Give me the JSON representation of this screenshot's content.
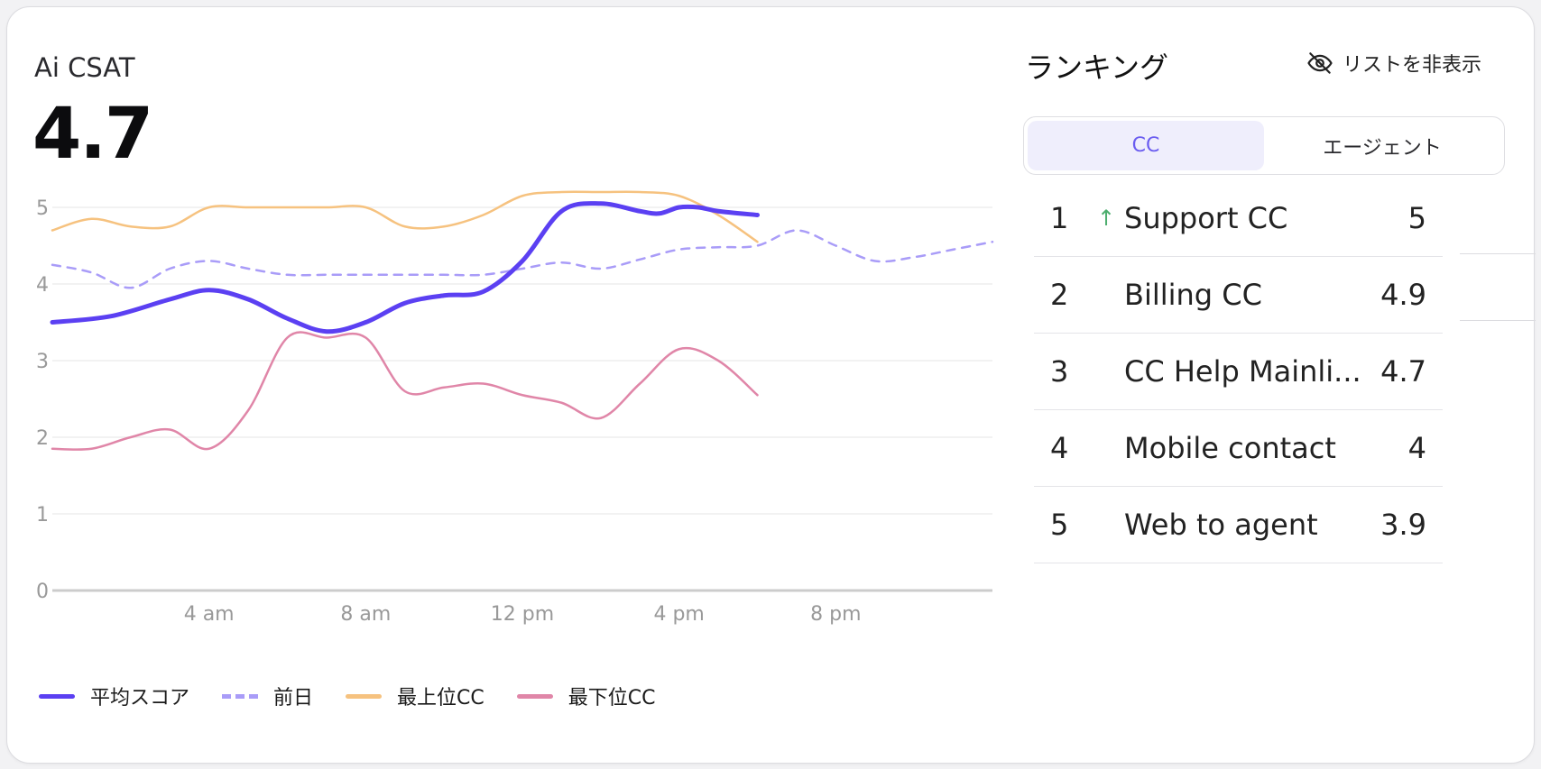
{
  "metric": {
    "label": "Ai CSAT",
    "value": "4.7"
  },
  "colors": {
    "avg": "#5b40f2",
    "prev": "#a99cf8",
    "top": "#f6c27f",
    "bottom": "#e086a8",
    "grid": "#eeeeee",
    "axis": "#cccccc",
    "tick": "#999999",
    "accent": "#6a5cf0",
    "up": "#4cae6e"
  },
  "chart_data": {
    "type": "line",
    "xlabel": "",
    "ylabel": "",
    "xlim": [
      0,
      24
    ],
    "ylim": [
      0,
      5
    ],
    "y_ticks": [
      0,
      1,
      2,
      3,
      4,
      5
    ],
    "x_ticks": [
      {
        "value": 4,
        "label": "4 am"
      },
      {
        "value": 8,
        "label": "8 am"
      },
      {
        "value": 12,
        "label": "12 pm"
      },
      {
        "value": 16,
        "label": "4 pm"
      },
      {
        "value": 20,
        "label": "8 pm"
      }
    ],
    "grid": true,
    "legend_position": "bottom-left",
    "series": [
      {
        "name": "平均スコア",
        "style": "solid",
        "color": "#5b40f2",
        "x": [
          0,
          1.5,
          3,
          4,
          5,
          6,
          7,
          8,
          9,
          10,
          11,
          12,
          13,
          14,
          15,
          15.5,
          16,
          16.5,
          17,
          18
        ],
        "y": [
          3.5,
          3.58,
          3.8,
          3.92,
          3.8,
          3.55,
          3.38,
          3.5,
          3.75,
          3.85,
          3.9,
          4.3,
          4.95,
          5.05,
          4.95,
          4.92,
          5.0,
          5.0,
          4.95,
          4.9
        ]
      },
      {
        "name": "前日",
        "style": "dashed",
        "color": "#a99cf8",
        "x": [
          0,
          1,
          2,
          3,
          4,
          5,
          6,
          7,
          8,
          9,
          10,
          11,
          12,
          13,
          14,
          15,
          16,
          17,
          18,
          19,
          20,
          21,
          22,
          23,
          24
        ],
        "y": [
          4.25,
          4.15,
          3.95,
          4.2,
          4.3,
          4.2,
          4.12,
          4.12,
          4.12,
          4.12,
          4.12,
          4.12,
          4.2,
          4.28,
          4.2,
          4.32,
          4.45,
          4.48,
          4.5,
          4.7,
          4.5,
          4.3,
          4.35,
          4.45,
          4.55
        ]
      },
      {
        "name": "最上位CC",
        "style": "solid",
        "color": "#f6c27f",
        "x": [
          0,
          1,
          2,
          3,
          4,
          5,
          6,
          7,
          8,
          9,
          10,
          11,
          12,
          13,
          14,
          15,
          16,
          17,
          18
        ],
        "y": [
          4.7,
          4.85,
          4.75,
          4.75,
          5.0,
          5.0,
          5.0,
          5.0,
          5.0,
          4.75,
          4.75,
          4.9,
          5.15,
          5.2,
          5.2,
          5.2,
          5.15,
          4.9,
          4.55
        ]
      },
      {
        "name": "最下位CC",
        "style": "solid",
        "color": "#e086a8",
        "x": [
          0,
          1,
          2,
          3,
          4,
          5,
          6,
          7,
          8,
          9,
          10,
          11,
          12,
          13,
          14,
          15,
          16,
          17,
          18
        ],
        "y": [
          1.85,
          1.85,
          2.0,
          2.1,
          1.85,
          2.35,
          3.3,
          3.3,
          3.3,
          2.6,
          2.65,
          2.7,
          2.55,
          2.45,
          2.25,
          2.7,
          3.15,
          3.0,
          2.55
        ]
      }
    ]
  },
  "ranking": {
    "title": "ランキング",
    "hide_label": "リストを非表示",
    "tabs": [
      {
        "label": "CC",
        "active": true
      },
      {
        "label": "エージェント",
        "active": false
      }
    ],
    "rows": [
      {
        "rank": "1",
        "trend": "↑",
        "name": "Support CC",
        "score": "5"
      },
      {
        "rank": "2",
        "trend": "",
        "name": "Billing CC",
        "score": "4.9"
      },
      {
        "rank": "3",
        "trend": "",
        "name": "CC Help Mainli...",
        "score": "4.7"
      },
      {
        "rank": "4",
        "trend": "",
        "name": "Mobile contact",
        "score": "4"
      },
      {
        "rank": "5",
        "trend": "",
        "name": "Web to agent",
        "score": "3.9"
      }
    ]
  }
}
